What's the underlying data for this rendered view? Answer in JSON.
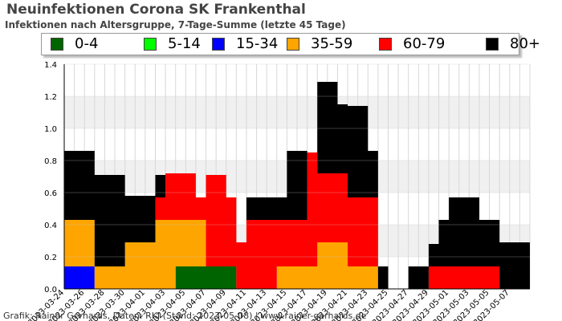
{
  "header": {
    "title": "Neuinfektionen Corona SK Frankenthal",
    "subtitle": "Infektionen nach Altersgruppe, 7-Tage-Summe (letzte 45 Tage)"
  },
  "footer": {
    "credit": "Grafik: Rainer Gerhards, Daten: RKI (Stand: 2023-05-08) | www.rainer-gerhards.de"
  },
  "chart_data": {
    "type": "area",
    "stacked": true,
    "grid": true,
    "legend_position": "top",
    "x": [
      "2023-03-24",
      "2023-03-25",
      "2023-03-26",
      "2023-03-27",
      "2023-03-28",
      "2023-03-29",
      "2023-03-30",
      "2023-03-31",
      "2023-04-01",
      "2023-04-02",
      "2023-04-03",
      "2023-04-04",
      "2023-04-05",
      "2023-04-06",
      "2023-04-07",
      "2023-04-08",
      "2023-04-09",
      "2023-04-10",
      "2023-04-11",
      "2023-04-12",
      "2023-04-13",
      "2023-04-14",
      "2023-04-15",
      "2023-04-16",
      "2023-04-17",
      "2023-04-18",
      "2023-04-19",
      "2023-04-20",
      "2023-04-21",
      "2023-04-22",
      "2023-04-23",
      "2023-04-24",
      "2023-04-25",
      "2023-04-26",
      "2023-04-27",
      "2023-04-28",
      "2023-04-29",
      "2023-04-30",
      "2023-05-01",
      "2023-05-02",
      "2023-05-03",
      "2023-05-04",
      "2023-05-05",
      "2023-05-06",
      "2023-05-07",
      "2023-05-08"
    ],
    "x_tick_labels": [
      "2023-03-24",
      "2023-03-26",
      "2023-03-28",
      "2023-03-30",
      "2023-04-01",
      "2023-04-03",
      "2023-04-05",
      "2023-04-07",
      "2023-04-09",
      "2023-04-11",
      "2023-04-13",
      "2023-04-15",
      "2023-04-17",
      "2023-04-19",
      "2023-04-21",
      "2023-04-23",
      "2023-04-25",
      "2023-04-27",
      "2023-04-29",
      "2023-05-01",
      "2023-05-03",
      "2023-05-05",
      "2023-05-07"
    ],
    "y_ticks": [
      "0.0",
      "0.2",
      "0.4",
      "0.6",
      "0.8",
      "1.0",
      "1.2",
      "1.4"
    ],
    "ylim": [
      0,
      1.4
    ],
    "series": [
      {
        "name": "0-4",
        "color": "#006400",
        "values": [
          0,
          0,
          0,
          0,
          0,
          0,
          0,
          0,
          0,
          0,
          0,
          0.14,
          0.14,
          0.14,
          0.14,
          0.14,
          0.14,
          0,
          0,
          0,
          0,
          0,
          0,
          0,
          0,
          0,
          0,
          0,
          0,
          0,
          0,
          0,
          0,
          0,
          0,
          0,
          0,
          0,
          0,
          0,
          0,
          0,
          0,
          0,
          0,
          0
        ]
      },
      {
        "name": "5-14",
        "color": "#00ff00",
        "values": [
          0,
          0,
          0,
          0,
          0,
          0,
          0,
          0,
          0,
          0,
          0,
          0,
          0,
          0,
          0,
          0,
          0,
          0,
          0,
          0,
          0,
          0,
          0,
          0,
          0,
          0,
          0,
          0,
          0,
          0,
          0,
          0,
          0,
          0,
          0,
          0,
          0,
          0,
          0,
          0,
          0,
          0,
          0,
          0,
          0,
          0
        ]
      },
      {
        "name": "15-34",
        "color": "#0000ff",
        "values": [
          0.14,
          0.14,
          0.14,
          0,
          0,
          0,
          0,
          0,
          0,
          0,
          0,
          0,
          0,
          0,
          0,
          0,
          0,
          0,
          0,
          0,
          0,
          0,
          0,
          0,
          0,
          0,
          0,
          0,
          0,
          0,
          0,
          0,
          0,
          0,
          0,
          0,
          0,
          0,
          0,
          0,
          0,
          0,
          0,
          0,
          0,
          0
        ]
      },
      {
        "name": "35-59",
        "color": "#ffa500",
        "values": [
          0.29,
          0.29,
          0.29,
          0.14,
          0.14,
          0.14,
          0.29,
          0.29,
          0.29,
          0.43,
          0.43,
          0.29,
          0.29,
          0.29,
          0,
          0,
          0,
          0,
          0,
          0,
          0,
          0.14,
          0.14,
          0.14,
          0.14,
          0.29,
          0.29,
          0.29,
          0.14,
          0.14,
          0.14,
          0,
          0,
          0,
          0,
          0,
          0,
          0,
          0,
          0,
          0,
          0,
          0,
          0,
          0,
          0
        ]
      },
      {
        "name": "60-79",
        "color": "#ff0000",
        "values": [
          0,
          0,
          0,
          0,
          0,
          0,
          0,
          0,
          0,
          0.14,
          0.29,
          0.29,
          0.29,
          0.14,
          0.57,
          0.57,
          0.43,
          0.29,
          0.43,
          0.43,
          0.43,
          0.29,
          0.29,
          0.29,
          0.71,
          0.43,
          0.43,
          0.43,
          0.43,
          0.43,
          0.43,
          0,
          0,
          0,
          0,
          0,
          0.14,
          0.14,
          0.14,
          0.14,
          0.14,
          0.14,
          0.14,
          0,
          0,
          0
        ]
      },
      {
        "name": "80+",
        "color": "#000000",
        "values": [
          0.43,
          0.43,
          0.43,
          0.57,
          0.57,
          0.57,
          0.29,
          0.29,
          0.29,
          0.14,
          0,
          0,
          0,
          0,
          0,
          0,
          0,
          0,
          0.14,
          0.14,
          0.14,
          0.14,
          0.43,
          0.43,
          0,
          0.57,
          0.57,
          0.43,
          0.57,
          0.57,
          0.29,
          0.14,
          0,
          0,
          0.14,
          0.14,
          0.14,
          0.29,
          0.43,
          0.43,
          0.43,
          0.29,
          0.29,
          0.29,
          0.29,
          0.29
        ]
      }
    ]
  }
}
